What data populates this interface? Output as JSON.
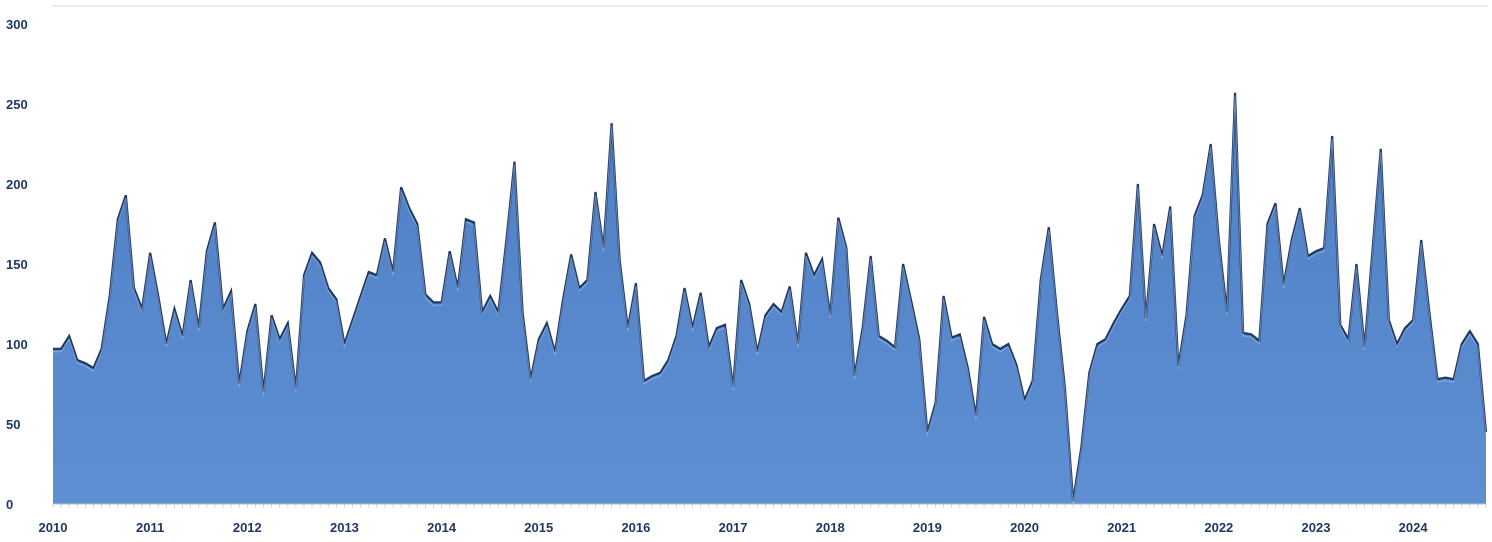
{
  "chart_data": {
    "type": "area",
    "title": "",
    "xlabel": "",
    "ylabel": "",
    "ylim": [
      0,
      300
    ],
    "yticks": [
      "0",
      "50",
      "100",
      "150",
      "200",
      "250",
      "300"
    ],
    "xticks": [
      "2010",
      "2011",
      "2012",
      "2013",
      "2014",
      "2015",
      "2016",
      "2017",
      "2018",
      "2019",
      "2020",
      "2021",
      "2022",
      "2023",
      "2024"
    ],
    "x_start": "2010-01",
    "x_frequency": "monthly",
    "colors": {
      "fill": "#5b8bd0",
      "edge": "#1f3864",
      "highlight": "#a9c8ee"
    },
    "series": [
      {
        "values": [
          97,
          97,
          105,
          90,
          88,
          85,
          97,
          130,
          178,
          193,
          135,
          122,
          157,
          130,
          100,
          122,
          105,
          140,
          110,
          158,
          176,
          122,
          133,
          75,
          108,
          125,
          70,
          118,
          103,
          113,
          72,
          143,
          157,
          151,
          135,
          128,
          100,
          115,
          130,
          145,
          143,
          166,
          145,
          198,
          185,
          175,
          131,
          126,
          126,
          158,
          135,
          178,
          176,
          120,
          130,
          120,
          165,
          214,
          120,
          78,
          103,
          113,
          95,
          128,
          156,
          135,
          140,
          195,
          160,
          238,
          152,
          110,
          138,
          77,
          80,
          82,
          90,
          105,
          135,
          110,
          132,
          98,
          110,
          112,
          73,
          140,
          125,
          95,
          118,
          125,
          120,
          136,
          100,
          157,
          143,
          153,
          118,
          179,
          160,
          80,
          110,
          155,
          105,
          102,
          98,
          150,
          127,
          103,
          45,
          63,
          130,
          104,
          106,
          85,
          55,
          117,
          100,
          97,
          100,
          87,
          65,
          77,
          140,
          173,
          120,
          72,
          2,
          35,
          82,
          100,
          103,
          113,
          122,
          130,
          200,
          116,
          175,
          155,
          186,
          86,
          118,
          180,
          193,
          225,
          165,
          120,
          257,
          107,
          106,
          102,
          175,
          188,
          137,
          165,
          185,
          155,
          158,
          160,
          230,
          112,
          103,
          150,
          98,
          160,
          222,
          115,
          100,
          110,
          115,
          165,
          120,
          78,
          79,
          78,
          100,
          108,
          100,
          45
        ]
      }
    ]
  }
}
